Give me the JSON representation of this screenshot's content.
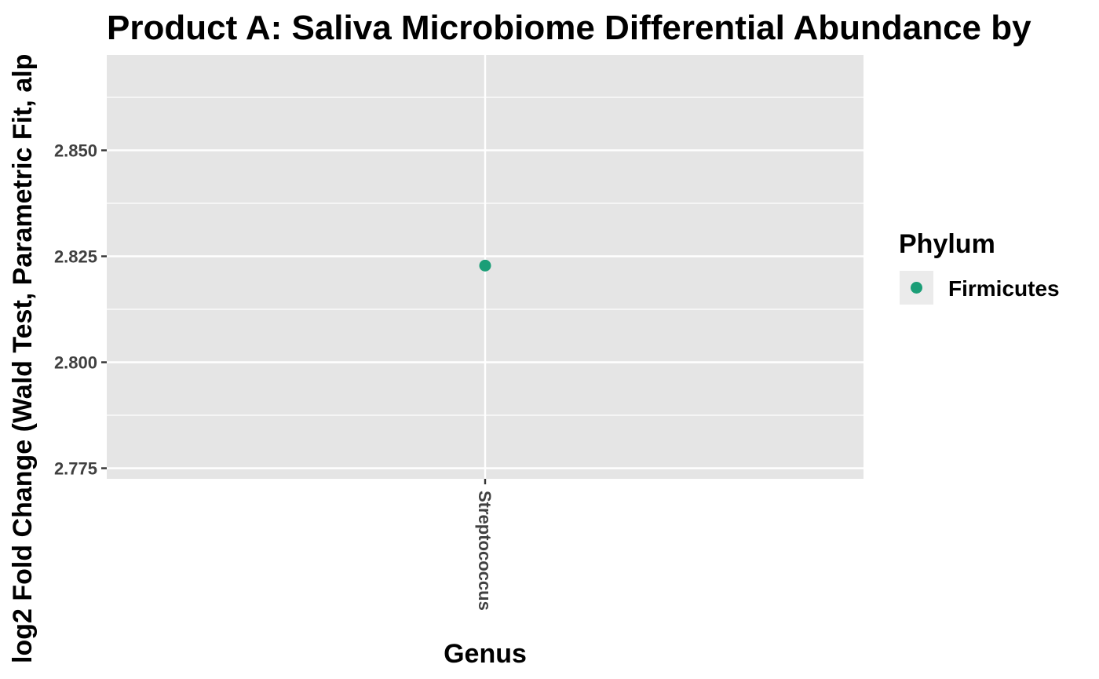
{
  "chart_data": {
    "type": "scatter",
    "title": "Product A: Saliva Microbiome Differential Abundance by",
    "xlabel": "Genus",
    "ylabel": "log2 Fold Change (Wald Test, Parametric Fit, alp",
    "categories": [
      "Streptococcus"
    ],
    "ylim": [
      2.7725,
      2.8725
    ],
    "y_ticks": [
      2.775,
      2.8,
      2.825,
      2.85
    ],
    "y_tick_labels": [
      "2.775",
      "2.800",
      "2.825",
      "2.850"
    ],
    "grid": true,
    "legend": {
      "title": "Phylum",
      "placement": "right",
      "entries": [
        {
          "label": "Firmicutes",
          "color": "#1B9E77"
        }
      ]
    },
    "series": [
      {
        "phylum": "Firmicutes",
        "color": "#1B9E77",
        "points": [
          {
            "x": "Streptococcus",
            "y": 2.8228
          }
        ]
      }
    ]
  },
  "colors": {
    "panel_background": "#E5E5E5",
    "grid_line": "#FFFFFF",
    "tick_mark": "#333333",
    "legend_key_background": "#EBEBEB"
  }
}
